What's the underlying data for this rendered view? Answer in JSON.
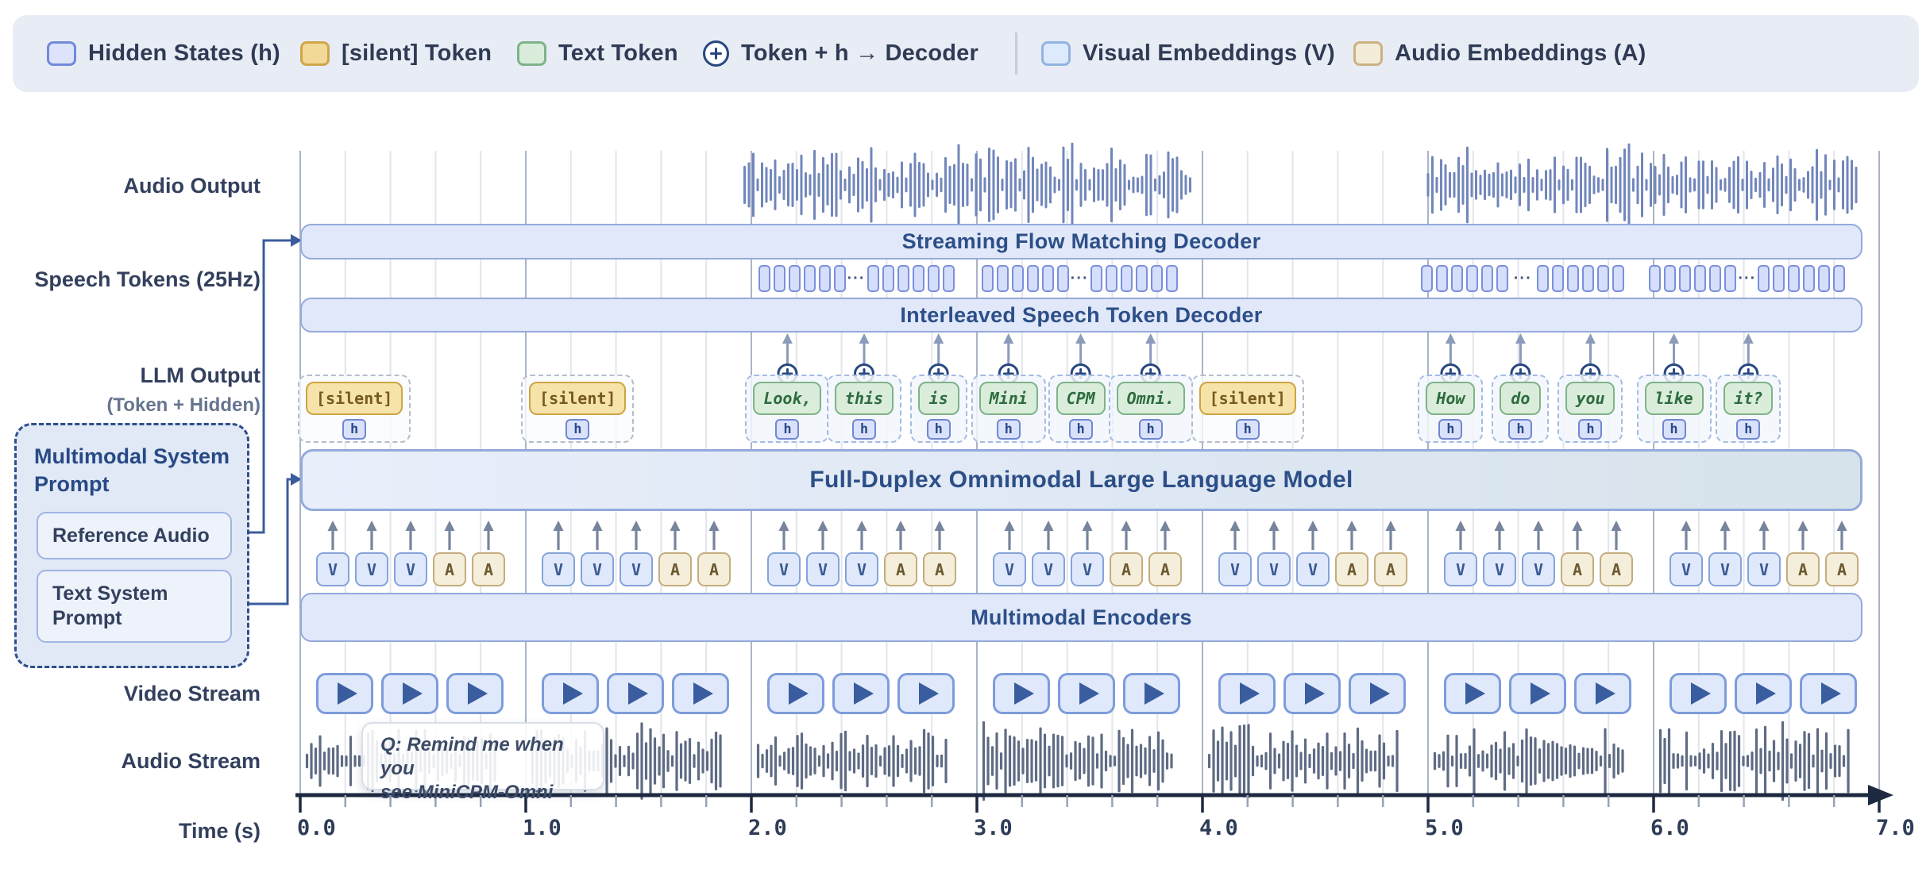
{
  "colors": {
    "page_bg": "#ffffff",
    "legend_bg": "#e8ecf4",
    "bar_fill": "#e0e8f9",
    "bar_border": "#94aada",
    "bar_text": "#2d4f88",
    "grid_major": "#aab4c6",
    "grid_minor": "#e2e5eb",
    "wave_output": "#7186bb",
    "wave_stream": "#5e6b84",
    "axis": "#1d2940",
    "connector": "#3b5c9c",
    "arrow": "#76849d",
    "token_arrow": "#8b9bba",
    "plus_ring": "#27477f",
    "hidden_fill": "#dce3fa",
    "hidden_border": "#7389da",
    "silent_fill": "#f6e3a9",
    "silent_border": "#cda443",
    "text_fill": "#d9edda",
    "text_border": "#7eb389",
    "visual_fill": "#e0e9fb",
    "visual_border": "#84a3da",
    "audio_fill": "#f4eeda",
    "audio_border": "#c3ad7e"
  },
  "legend": {
    "items": [
      {
        "id": "hidden",
        "label": "Hidden States (h)"
      },
      {
        "id": "silent",
        "label": "[silent] Token"
      },
      {
        "id": "text",
        "label": "Text Token"
      },
      {
        "id": "plus",
        "label": "Token + h → Decoder"
      },
      {
        "id": "visual",
        "label": "Visual Embeddings (V)"
      },
      {
        "id": "audio",
        "label": "Audio Embeddings (A)"
      }
    ]
  },
  "labels": {
    "audio_output": "Audio Output",
    "speech_tokens": "Speech Tokens (25Hz)",
    "llm_output": "LLM Output",
    "llm_output_sub": "(Token + Hidden)",
    "video_stream": "Video Stream",
    "audio_stream": "Audio Stream",
    "time": "Time (s)"
  },
  "bars": {
    "flow_decoder": "Streaming Flow Matching Decoder",
    "token_decoder": "Interleaved Speech Token Decoder",
    "llm": "Full-Duplex Omnimodal Large Language Model",
    "encoders": "Multimodal Encoders"
  },
  "system_prompt": {
    "title": "Multimodal System Prompt",
    "items": [
      "Reference Audio",
      "Text System Prompt"
    ]
  },
  "question_bubble": {
    "line1": "Q: Remind me when you",
    "line2": "see MiniCPM-Omni"
  },
  "llm_output": {
    "hidden_label": "h",
    "tokens": [
      {
        "text": "[silent]",
        "type": "silent",
        "t": 0.24
      },
      {
        "text": "[silent]",
        "type": "silent",
        "t": 1.23
      },
      {
        "text": "Look,",
        "type": "text",
        "t": 2.16
      },
      {
        "text": "this",
        "type": "text",
        "t": 2.5
      },
      {
        "text": "is",
        "type": "text",
        "t": 2.83
      },
      {
        "text": "Mini",
        "type": "text",
        "t": 3.14
      },
      {
        "text": "CPM",
        "type": "text",
        "t": 3.46
      },
      {
        "text": "Omni.",
        "type": "text",
        "t": 3.77
      },
      {
        "text": "[silent]",
        "type": "silent",
        "t": 4.2
      },
      {
        "text": "How",
        "type": "text",
        "t": 5.1
      },
      {
        "text": "do",
        "type": "text",
        "t": 5.41
      },
      {
        "text": "you",
        "type": "text",
        "t": 5.72
      },
      {
        "text": "like",
        "type": "text",
        "t": 6.09
      },
      {
        "text": "it?",
        "type": "text",
        "t": 6.42
      }
    ]
  },
  "speech_tokens": {
    "cells_per_cluster": 6,
    "ellipsis": "···",
    "groups": [
      {
        "start": 2.03,
        "end": 2.88
      },
      {
        "start": 3.02,
        "end": 3.87
      },
      {
        "start": 4.97,
        "end": 5.87
      },
      {
        "start": 5.98,
        "end": 6.85
      }
    ]
  },
  "audio_output": {
    "segments": [
      {
        "start": 1.97,
        "end": 3.95
      },
      {
        "start": 5.0,
        "end": 6.9
      }
    ]
  },
  "audio_stream": {
    "seconds": [
      0,
      1,
      2,
      3,
      4,
      5,
      6
    ],
    "start_offset": 0.03,
    "end_offset": 0.88
  },
  "video_stream": {
    "frames_per_second": 3
  },
  "modality_pattern": [
    "V",
    "V",
    "V",
    "A",
    "A"
  ],
  "timeline": {
    "start": 0.0,
    "end": 7.0,
    "minor_step": 0.2,
    "tick_labels": [
      "0.0",
      "1.0",
      "2.0",
      "3.0",
      "4.0",
      "5.0",
      "6.0",
      "7.0"
    ]
  }
}
